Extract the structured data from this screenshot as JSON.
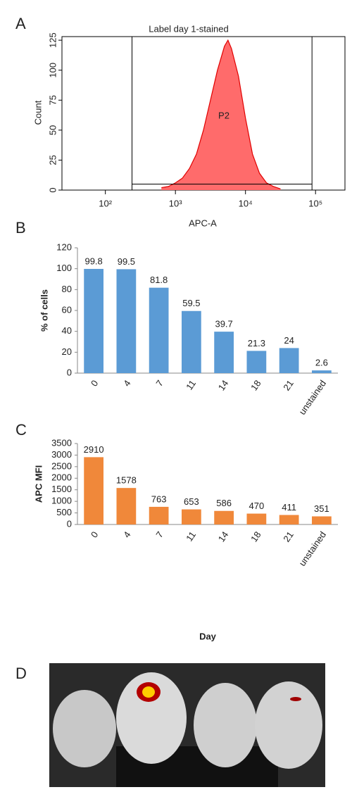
{
  "chart_data": [
    {
      "type": "area",
      "panel": "A",
      "title": "Label day 1-stained",
      "xlabel": "APC-A",
      "ylabel": "Count",
      "annotation": "P2",
      "log_x": true,
      "color": "#ff6b6b",
      "line_color": "#e00000",
      "series": [
        {
          "name": "P2",
          "x": [
            631,
            794,
            1000,
            1259,
            1585,
            1995,
            2512,
            3162,
            3981,
            5012,
            5623,
            6310,
            7943,
            10000,
            12589,
            15849,
            19953,
            25119,
            31623
          ],
          "values": [
            2,
            3,
            6,
            10,
            18,
            30,
            50,
            75,
            100,
            120,
            125,
            118,
            95,
            60,
            30,
            14,
            6,
            3,
            1
          ]
        }
      ],
      "xlim": [
        24,
        263000
      ],
      "xticks": [
        {
          "value": 100,
          "label": "10²"
        },
        {
          "value": 1000,
          "label": "10³"
        },
        {
          "value": 10000,
          "label": "10⁴"
        },
        {
          "value": 100000,
          "label": "10⁵"
        }
      ],
      "ylim": [
        0,
        128
      ],
      "yticks": [
        0,
        25,
        50,
        75,
        100,
        125
      ],
      "gate": {
        "x": [
          240,
          89000
        ],
        "y": 5
      }
    },
    {
      "type": "bar",
      "panel": "B",
      "ylabel": "% of cells",
      "color": "#5b9bd5",
      "categories": [
        "0",
        "4",
        "7",
        "11",
        "14",
        "18",
        "21",
        "unstained"
      ],
      "values": [
        99.8,
        99.5,
        81.8,
        59.5,
        39.7,
        21.3,
        24,
        2.6
      ],
      "ylim": [
        0,
        120
      ],
      "yticks": [
        0,
        20,
        40,
        60,
        80,
        100,
        120
      ]
    },
    {
      "type": "bar",
      "panel": "C",
      "ylabel": "APC MFI",
      "xlabel": "Day",
      "color": "#f0883a",
      "categories": [
        "0",
        "4",
        "7",
        "11",
        "14",
        "18",
        "21",
        "unstained"
      ],
      "values": [
        2910,
        1578,
        763,
        653,
        586,
        470,
        411,
        351
      ],
      "ylim": [
        0,
        3500
      ],
      "yticks": [
        0,
        500,
        1000,
        1500,
        2000,
        2500,
        3000,
        3500
      ]
    }
  ],
  "image_panel": {
    "label": "D"
  }
}
